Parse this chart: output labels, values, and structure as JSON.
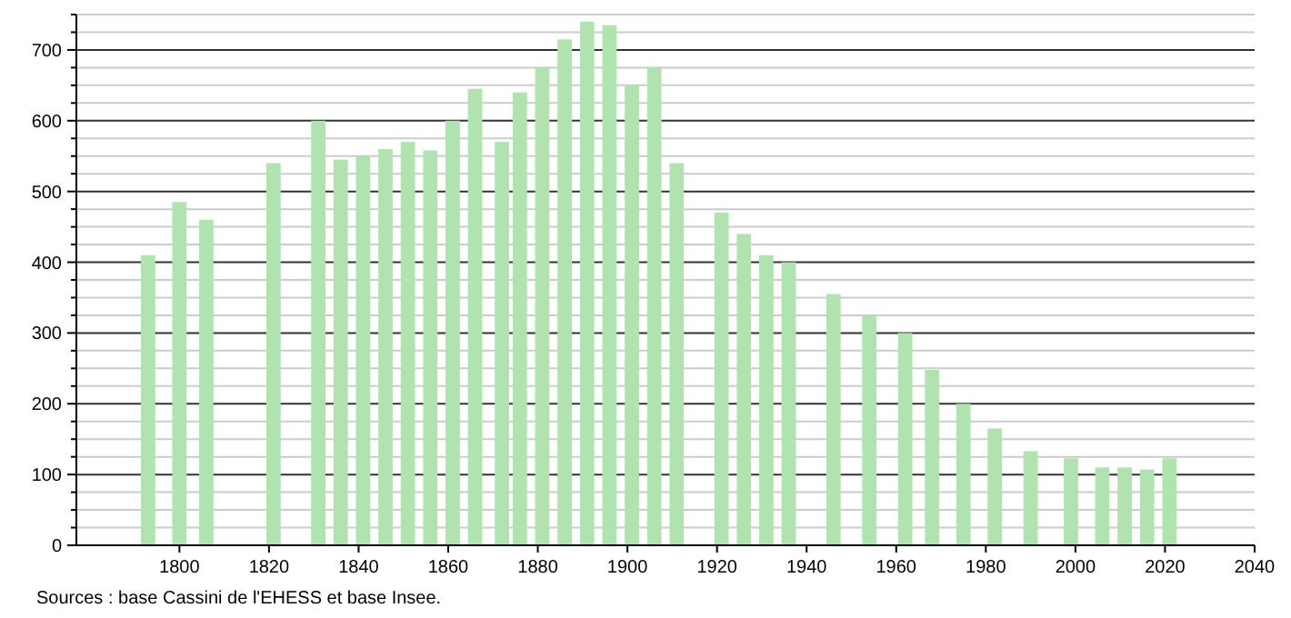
{
  "chart_data": {
    "type": "bar",
    "x": [
      1793,
      1800,
      1806,
      1821,
      1831,
      1836,
      1841,
      1846,
      1851,
      1856,
      1861,
      1866,
      1872,
      1876,
      1881,
      1886,
      1891,
      1896,
      1901,
      1906,
      1911,
      1921,
      1926,
      1931,
      1936,
      1946,
      1954,
      1962,
      1968,
      1975,
      1982,
      1990,
      1999,
      2006,
      2011,
      2016,
      2021
    ],
    "values": [
      410,
      485,
      460,
      540,
      600,
      545,
      550,
      560,
      570,
      558,
      600,
      645,
      570,
      640,
      675,
      715,
      740,
      735,
      650,
      675,
      540,
      470,
      440,
      410,
      400,
      355,
      325,
      300,
      248,
      200,
      165,
      133,
      123,
      110,
      110,
      107,
      123
    ],
    "color": "#b0e3b0",
    "xlim": [
      1777,
      2040
    ],
    "xticks": [
      1800,
      1820,
      1840,
      1860,
      1880,
      1900,
      1920,
      1940,
      1960,
      1980,
      2000,
      2020,
      2040
    ],
    "ylim": [
      0,
      750
    ],
    "yticks": [
      0,
      {
        "value": 25,
        "label": null
      },
      {
        "value": 50,
        "label": null
      },
      {
        "value": 75,
        "label": null
      },
      100,
      {
        "value": 125,
        "label": null
      },
      {
        "value": 150,
        "label": null
      },
      {
        "value": 175,
        "label": null
      },
      200,
      {
        "value": 225,
        "label": null
      },
      {
        "value": 250,
        "label": null
      },
      {
        "value": 275,
        "label": null
      },
      300,
      {
        "value": 325,
        "label": null
      },
      {
        "value": 350,
        "label": null
      },
      {
        "value": 375,
        "label": null
      },
      400,
      {
        "value": 425,
        "label": null
      },
      {
        "value": 450,
        "label": null
      },
      {
        "value": 475,
        "label": null
      },
      500,
      {
        "value": 525,
        "label": null
      },
      {
        "value": 550,
        "label": null
      },
      {
        "value": 575,
        "label": null
      },
      600,
      {
        "value": 625,
        "label": null
      },
      {
        "value": 650,
        "label": null
      },
      {
        "value": 675,
        "label": null
      },
      700,
      {
        "value": 725,
        "label": null
      },
      {
        "value": 750,
        "label": null
      }
    ],
    "grid": true,
    "annotations": [
      "Sources : base Cassini de l'EHESS et base Insee."
    ]
  }
}
